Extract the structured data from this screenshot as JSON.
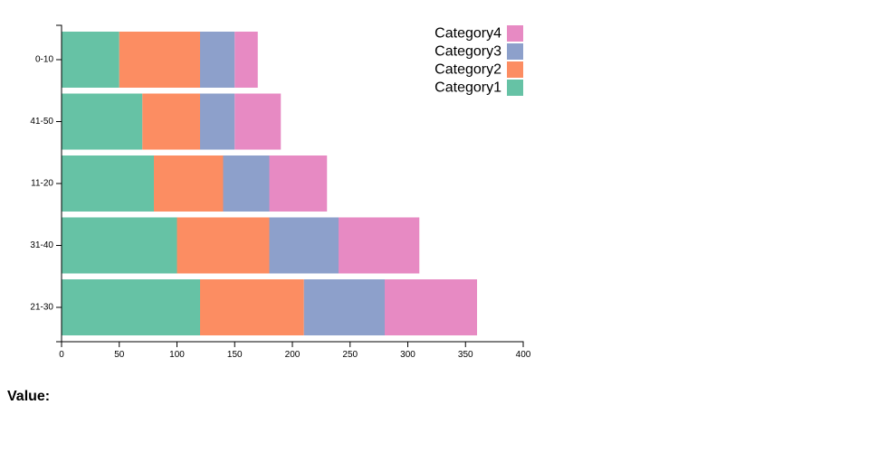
{
  "chart_data": {
    "type": "bar",
    "orientation": "horizontal",
    "stacked": true,
    "categories": [
      "0-10",
      "41-50",
      "11-20",
      "31-40",
      "21-30"
    ],
    "series": [
      {
        "name": "Category1",
        "color": "#66c2a5",
        "values": [
          50,
          70,
          80,
          100,
          120
        ]
      },
      {
        "name": "Category2",
        "color": "#fc8d62",
        "values": [
          70,
          50,
          60,
          80,
          90
        ]
      },
      {
        "name": "Category3",
        "color": "#8da0cb",
        "values": [
          30,
          30,
          40,
          60,
          70
        ]
      },
      {
        "name": "Category4",
        "color": "#e78ac3",
        "values": [
          20,
          40,
          50,
          70,
          80
        ]
      }
    ],
    "xlim": [
      0,
      400
    ],
    "x_ticks": [
      0,
      50,
      100,
      150,
      200,
      250,
      300,
      350,
      400
    ],
    "legend_position": "top-right",
    "legend_order": [
      "Category4",
      "Category3",
      "Category2",
      "Category1"
    ],
    "grid": false
  },
  "value_label": "Value:"
}
